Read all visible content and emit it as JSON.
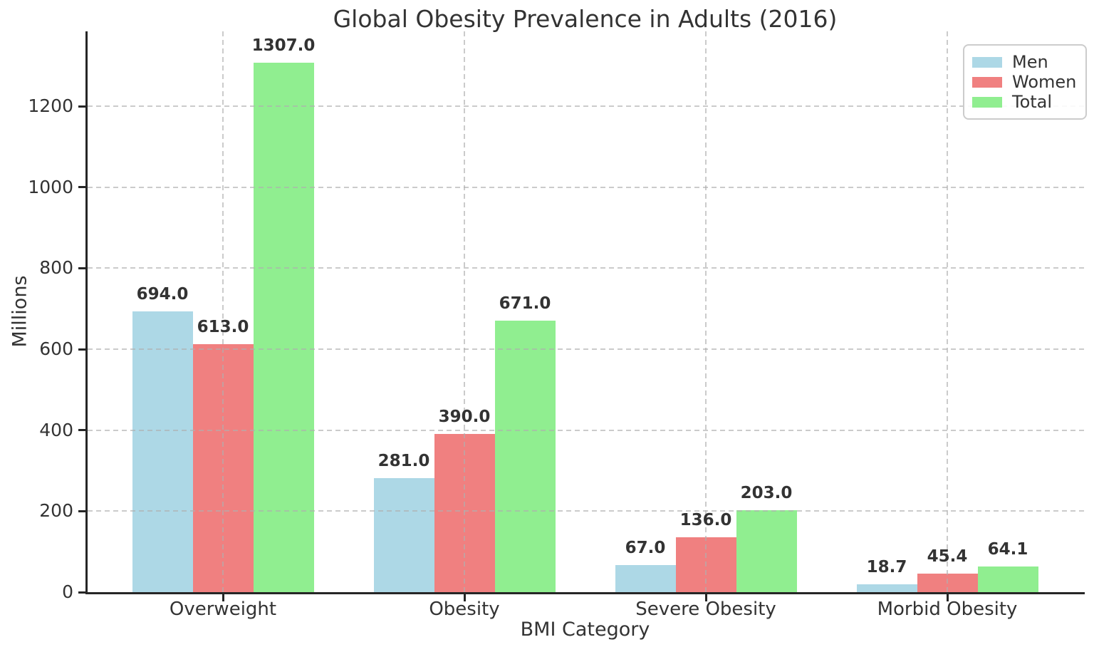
{
  "chart_data": {
    "type": "bar",
    "title": "Global Obesity Prevalence in Adults (2016)",
    "xlabel": "BMI Category",
    "ylabel": "Millions",
    "categories": [
      "Overweight",
      "Obesity",
      "Severe Obesity",
      "Morbid Obesity"
    ],
    "series": [
      {
        "name": "Men",
        "color": "#ADD8E6",
        "values": [
          694.0,
          281.0,
          67.0,
          18.7
        ]
      },
      {
        "name": "Women",
        "color": "#F08080",
        "values": [
          613.0,
          390.0,
          136.0,
          45.4
        ]
      },
      {
        "name": "Total",
        "color": "#90EE90",
        "values": [
          1307.0,
          671.0,
          203.0,
          64.1
        ]
      }
    ],
    "bar_value_labels": [
      [
        "694.0",
        "281.0",
        "67.0",
        "18.7"
      ],
      [
        "613.0",
        "390.0",
        "136.0",
        "45.4"
      ],
      [
        "1307.0",
        "671.0",
        "203.0",
        "64.1"
      ]
    ],
    "y_ticks": [
      0,
      200,
      400,
      600,
      800,
      1000,
      1200
    ],
    "ylim": [
      0,
      1385
    ],
    "grid": {
      "visible": true,
      "style": "dashed",
      "axes": "both",
      "above_bars": true
    },
    "legend": {
      "position": "upper right",
      "entries": [
        "Men",
        "Women",
        "Total"
      ]
    },
    "colors": {
      "text": "#333333",
      "spine": "#262626",
      "gridline": "#cfcfcf",
      "legend_border": "#cccccc",
      "background": "#ffffff"
    }
  }
}
